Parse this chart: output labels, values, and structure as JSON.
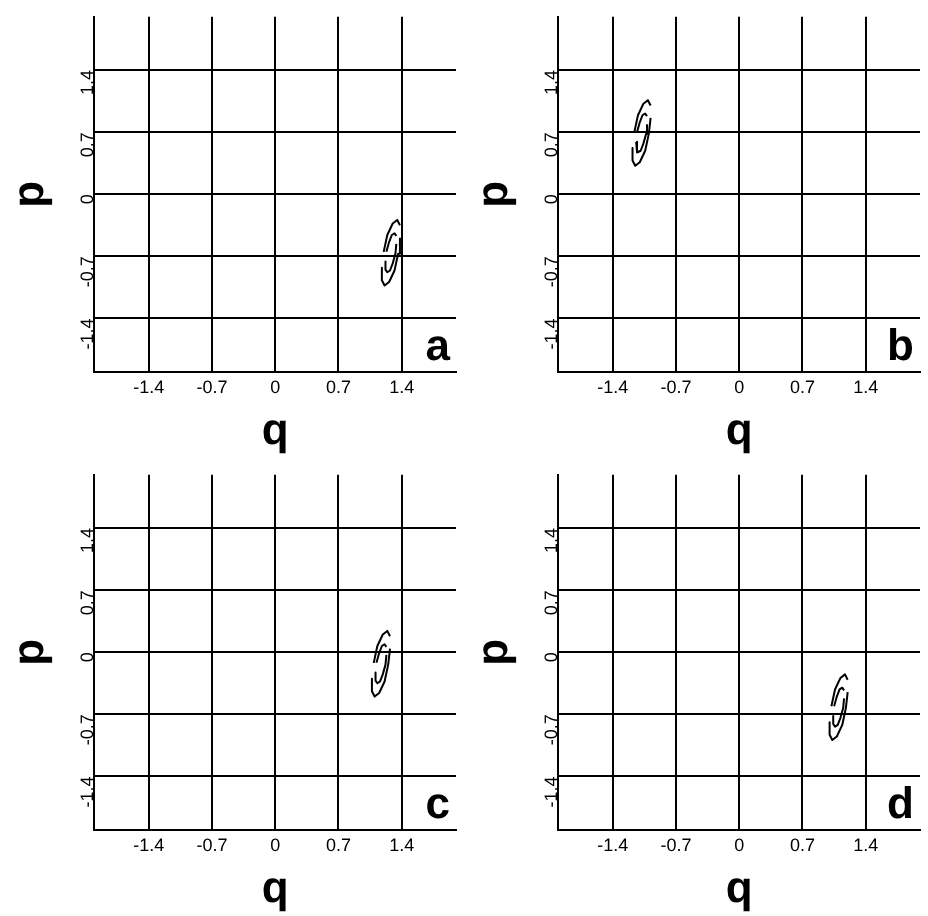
{
  "chart_data": [
    {
      "type": "line",
      "xlabel": "q",
      "ylabel": "p",
      "annotations": [
        "a"
      ],
      "xlim": [
        -2,
        2
      ],
      "ylim": [
        -2,
        2
      ],
      "xticks": [
        -1.4,
        -0.7,
        0,
        0.7,
        1.4
      ],
      "yticks": [
        -1.4,
        -0.7,
        0,
        0.7,
        1.4
      ],
      "grid": true,
      "legend": false,
      "marker": "none",
      "line_style": "solid",
      "series": [
        {
          "color": "#000000",
          "x": [
            1.18,
            1.18,
            1.21,
            1.26,
            1.32,
            1.36,
            1.38
          ],
          "values": [
            -0.83,
            -0.97,
            -1.03,
            -0.99,
            -0.86,
            -0.67,
            -0.49
          ]
        },
        {
          "color": "#000000",
          "x": [
            1.2,
            1.24,
            1.3,
            1.35,
            1.38
          ],
          "values": [
            -0.65,
            -0.46,
            -0.33,
            -0.29,
            -0.35
          ]
        },
        {
          "color": "#000000",
          "x": [
            1.22,
            1.22,
            1.24,
            1.27,
            1.3,
            1.33,
            1.34
          ],
          "values": [
            -0.76,
            -0.85,
            -0.88,
            -0.86,
            -0.78,
            -0.67,
            -0.56
          ]
        },
        {
          "color": "#000000",
          "x": [
            1.23,
            1.26,
            1.29,
            1.32,
            1.34
          ],
          "values": [
            -0.65,
            -0.54,
            -0.46,
            -0.44,
            -0.47
          ]
        }
      ]
    },
    {
      "type": "line",
      "xlabel": "q",
      "ylabel": "p",
      "annotations": [
        "b"
      ],
      "xlim": [
        -2,
        2
      ],
      "ylim": [
        -2,
        2
      ],
      "xticks": [
        -1.4,
        -0.7,
        0,
        0.7,
        1.4
      ],
      "yticks": [
        -1.4,
        -0.7,
        0,
        0.7,
        1.4
      ],
      "grid": true,
      "legend": false,
      "marker": "none",
      "line_style": "solid",
      "series": [
        {
          "color": "#000000",
          "x": [
            -1.18,
            -1.18,
            -1.15,
            -1.1,
            -1.04,
            -1.0,
            -0.98
          ],
          "values": [
            0.52,
            0.38,
            0.32,
            0.36,
            0.49,
            0.68,
            0.86
          ]
        },
        {
          "color": "#000000",
          "x": [
            -1.16,
            -1.12,
            -1.06,
            -1.01,
            -0.98
          ],
          "values": [
            0.7,
            0.89,
            1.02,
            1.06,
            1.0
          ]
        },
        {
          "color": "#000000",
          "x": [
            -1.14,
            -1.14,
            -1.12,
            -1.09,
            -1.06,
            -1.03,
            -1.02
          ],
          "values": [
            0.59,
            0.5,
            0.47,
            0.49,
            0.57,
            0.68,
            0.79
          ]
        },
        {
          "color": "#000000",
          "x": [
            -1.13,
            -1.1,
            -1.07,
            -1.04,
            -1.02
          ],
          "values": [
            0.7,
            0.81,
            0.89,
            0.91,
            0.88
          ]
        }
      ]
    },
    {
      "type": "line",
      "xlabel": "q",
      "ylabel": "p",
      "annotations": [
        "c"
      ],
      "xlim": [
        -2,
        2
      ],
      "ylim": [
        -2,
        2
      ],
      "xticks": [
        -1.4,
        -0.7,
        0,
        0.7,
        1.4
      ],
      "yticks": [
        -1.4,
        -0.7,
        0,
        0.7,
        1.4
      ],
      "grid": true,
      "legend": false,
      "marker": "none",
      "line_style": "solid",
      "series": [
        {
          "color": "#000000",
          "x": [
            1.07,
            1.07,
            1.1,
            1.15,
            1.21,
            1.25,
            1.27
          ],
          "values": [
            -0.3,
            -0.44,
            -0.5,
            -0.46,
            -0.33,
            -0.14,
            0.04
          ]
        },
        {
          "color": "#000000",
          "x": [
            1.09,
            1.13,
            1.19,
            1.24,
            1.27
          ],
          "values": [
            -0.12,
            0.07,
            0.2,
            0.24,
            0.18
          ]
        },
        {
          "color": "#000000",
          "x": [
            1.11,
            1.11,
            1.13,
            1.16,
            1.19,
            1.22,
            1.23
          ],
          "values": [
            -0.23,
            -0.32,
            -0.35,
            -0.33,
            -0.25,
            -0.14,
            -0.03
          ]
        },
        {
          "color": "#000000",
          "x": [
            1.12,
            1.15,
            1.18,
            1.21,
            1.23
          ],
          "values": [
            -0.12,
            -0.01,
            0.07,
            0.09,
            0.06
          ]
        }
      ]
    },
    {
      "type": "line",
      "xlabel": "q",
      "ylabel": "p",
      "annotations": [
        "d"
      ],
      "xlim": [
        -2,
        2
      ],
      "ylim": [
        -2,
        2
      ],
      "xticks": [
        -1.4,
        -0.7,
        0,
        0.7,
        1.4
      ],
      "yticks": [
        -1.4,
        -0.7,
        0,
        0.7,
        1.4
      ],
      "grid": true,
      "legend": false,
      "marker": "none",
      "line_style": "solid",
      "series": [
        {
          "color": "#000000",
          "x": [
            1.0,
            1.0,
            1.03,
            1.08,
            1.14,
            1.18,
            1.2
          ],
          "values": [
            -0.79,
            -0.93,
            -0.99,
            -0.95,
            -0.82,
            -0.63,
            -0.45
          ]
        },
        {
          "color": "#000000",
          "x": [
            1.02,
            1.06,
            1.12,
            1.17,
            1.2
          ],
          "values": [
            -0.61,
            -0.42,
            -0.29,
            -0.25,
            -0.31
          ]
        },
        {
          "color": "#000000",
          "x": [
            1.04,
            1.04,
            1.06,
            1.09,
            1.12,
            1.15,
            1.16
          ],
          "values": [
            -0.72,
            -0.81,
            -0.84,
            -0.82,
            -0.74,
            -0.63,
            -0.52
          ]
        },
        {
          "color": "#000000",
          "x": [
            1.05,
            1.08,
            1.11,
            1.14,
            1.16
          ],
          "values": [
            -0.61,
            -0.5,
            -0.42,
            -0.4,
            -0.43
          ]
        }
      ]
    }
  ]
}
